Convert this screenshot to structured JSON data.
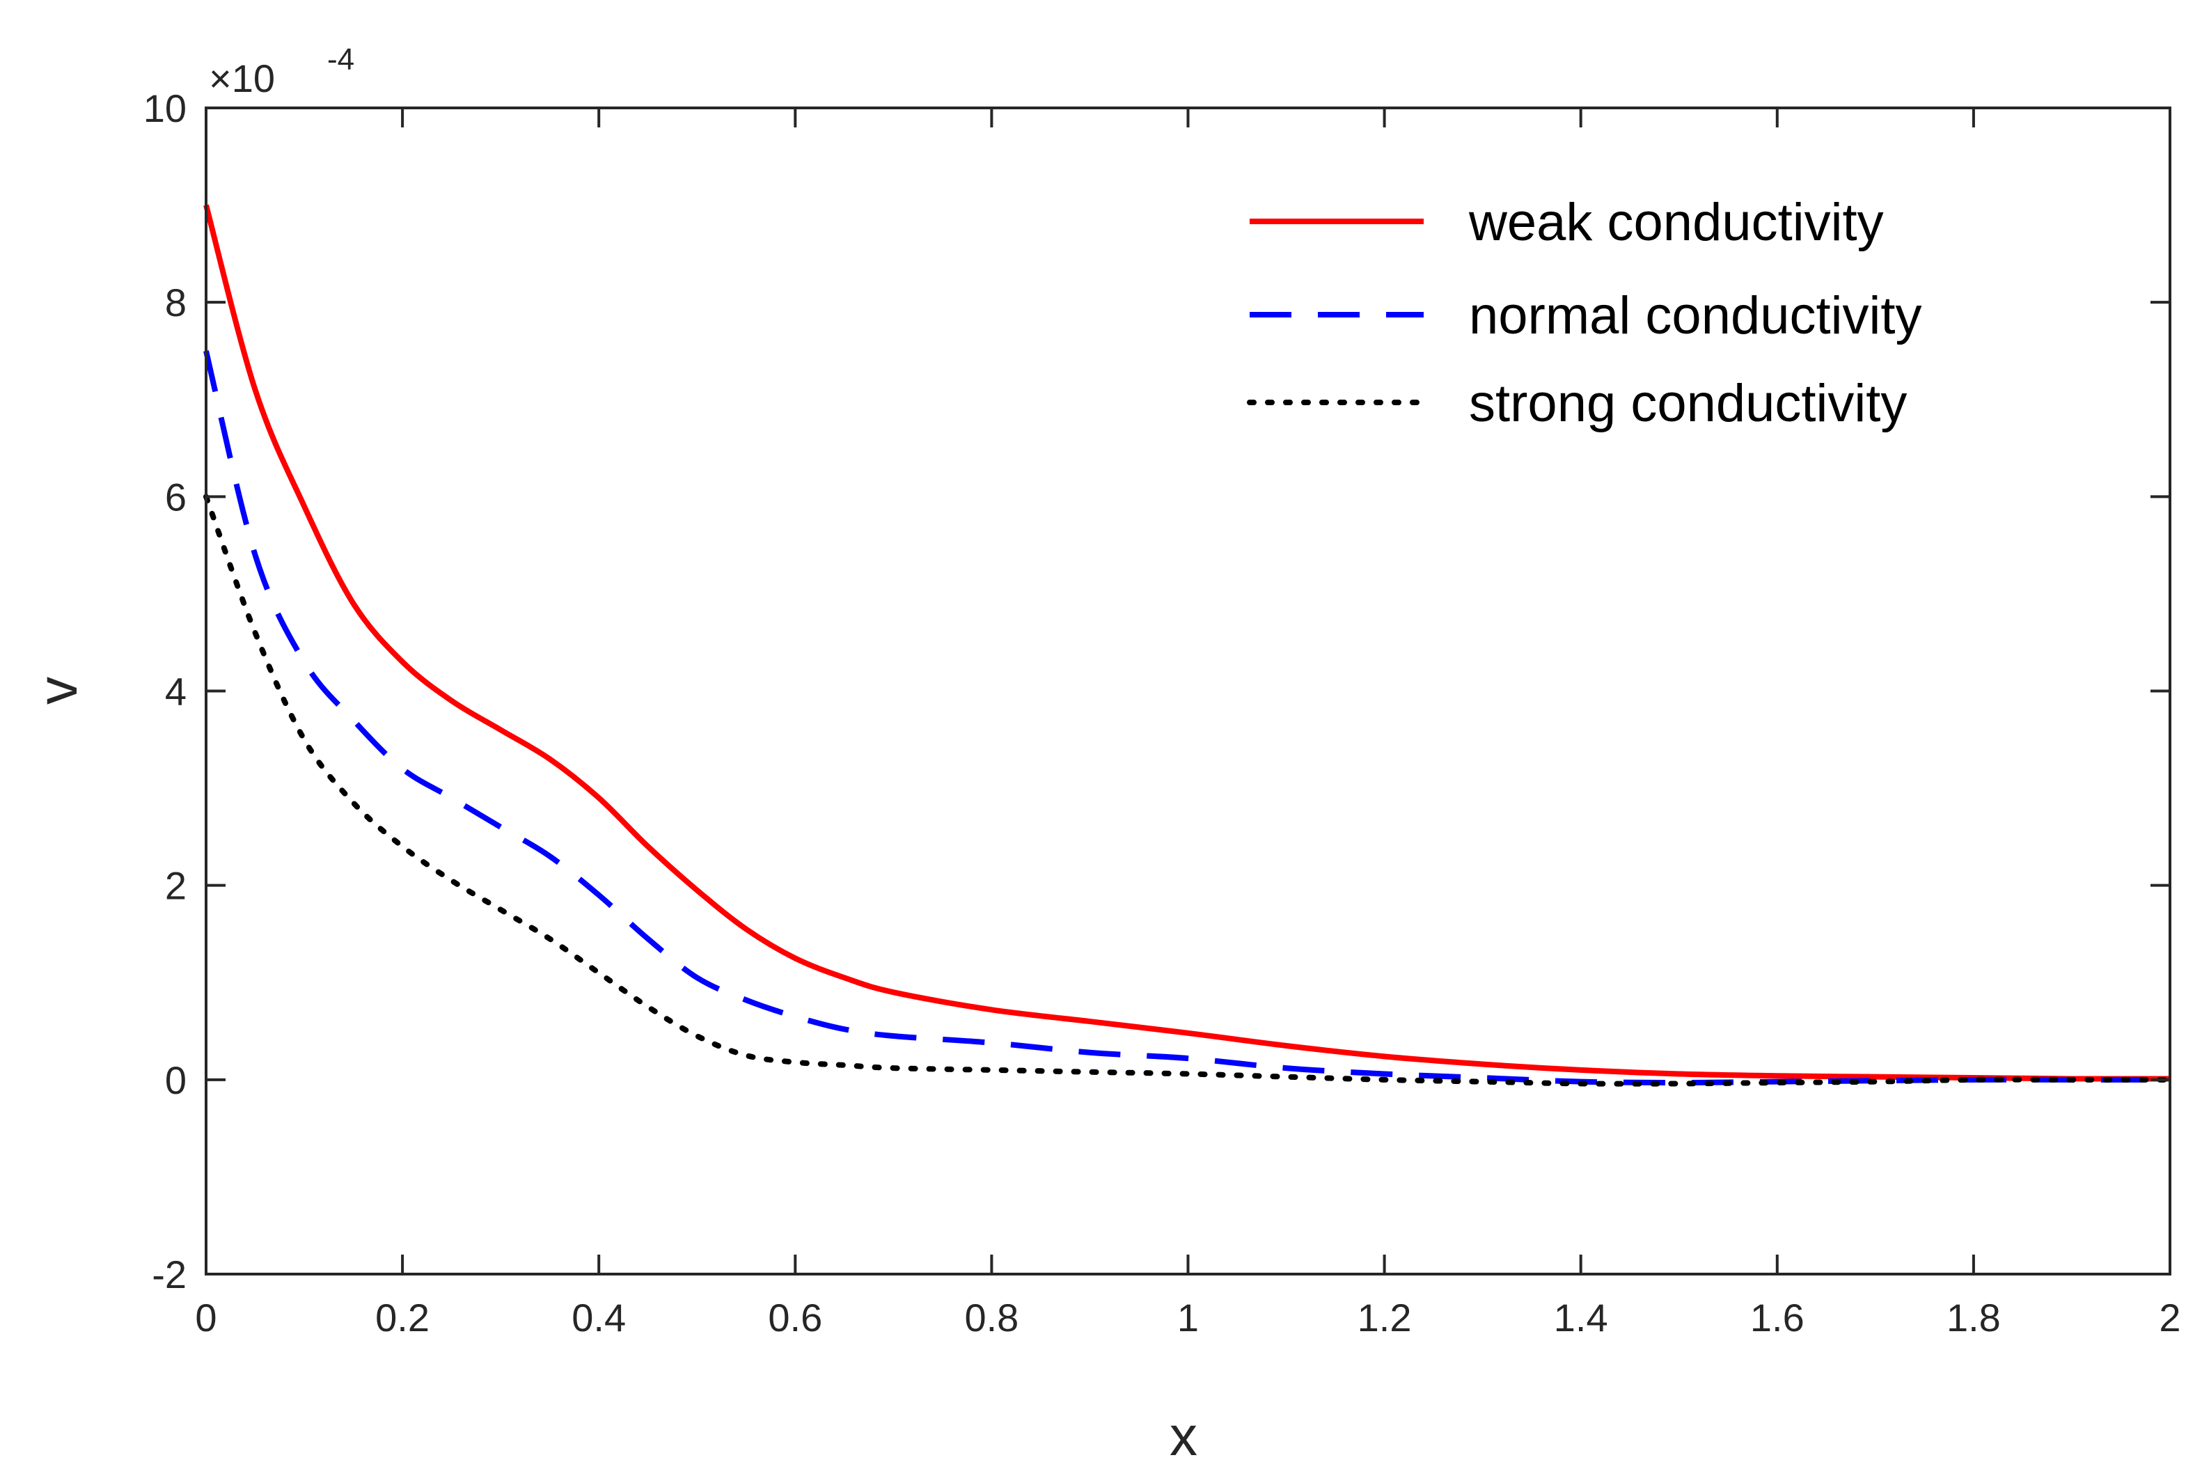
{
  "chart_data": {
    "type": "line",
    "title": "",
    "xlabel": "x",
    "ylabel": "v",
    "xlim": [
      0,
      2
    ],
    "ylim": [
      -2,
      10
    ],
    "y_multiplier": {
      "base": "×10",
      "exponent": "-4"
    },
    "xticks": [
      0,
      0.2,
      0.4,
      0.6,
      0.8,
      1,
      1.2,
      1.4,
      1.6,
      1.8,
      2
    ],
    "xtick_labels": [
      "0",
      "0.2",
      "0.4",
      "0.6",
      "0.8",
      "1",
      "1.2",
      "1.4",
      "1.6",
      "1.8",
      "2"
    ],
    "yticks": [
      -2,
      0,
      2,
      4,
      6,
      8,
      10
    ],
    "ytick_labels": [
      "-2",
      "0",
      "2",
      "4",
      "6",
      "8",
      "10"
    ],
    "grid": false,
    "legend_position": "top-right",
    "series": [
      {
        "name": "weak conductivity",
        "color": "#ff0000",
        "style": "solid",
        "x": [
          0,
          0.05,
          0.1,
          0.15,
          0.2,
          0.25,
          0.3,
          0.35,
          0.4,
          0.45,
          0.5,
          0.55,
          0.6,
          0.65,
          0.7,
          0.8,
          0.9,
          1.0,
          1.1,
          1.2,
          1.3,
          1.4,
          1.5,
          1.6,
          1.7,
          1.8,
          1.9,
          2.0
        ],
        "values": [
          9.0,
          7.1,
          5.9,
          4.9,
          4.3,
          3.9,
          3.6,
          3.3,
          2.9,
          2.4,
          1.95,
          1.55,
          1.25,
          1.05,
          0.9,
          0.72,
          0.6,
          0.48,
          0.35,
          0.24,
          0.16,
          0.1,
          0.06,
          0.04,
          0.03,
          0.02,
          0.01,
          0.01
        ]
      },
      {
        "name": "normal conductivity",
        "color": "#0000ff",
        "style": "dashed",
        "x": [
          0,
          0.05,
          0.1,
          0.15,
          0.2,
          0.25,
          0.3,
          0.35,
          0.4,
          0.45,
          0.5,
          0.55,
          0.6,
          0.65,
          0.7,
          0.8,
          0.9,
          1.0,
          1.1,
          1.2,
          1.3,
          1.4,
          1.5,
          1.6,
          1.7,
          1.8,
          1.9,
          2.0
        ],
        "values": [
          7.5,
          5.4,
          4.3,
          3.7,
          3.2,
          2.9,
          2.6,
          2.3,
          1.9,
          1.45,
          1.05,
          0.82,
          0.65,
          0.52,
          0.45,
          0.38,
          0.28,
          0.22,
          0.12,
          0.06,
          0.02,
          -0.02,
          -0.03,
          -0.02,
          -0.01,
          0.0,
          0.0,
          0.0
        ]
      },
      {
        "name": "strong conductivity",
        "color": "#000000",
        "style": "dotted",
        "x": [
          0,
          0.05,
          0.1,
          0.15,
          0.2,
          0.25,
          0.3,
          0.35,
          0.4,
          0.45,
          0.5,
          0.55,
          0.6,
          0.65,
          0.7,
          0.8,
          0.9,
          1.0,
          1.1,
          1.2,
          1.3,
          1.4,
          1.5,
          1.6,
          1.7,
          1.8,
          1.9,
          2.0
        ],
        "values": [
          6.0,
          4.6,
          3.5,
          2.85,
          2.4,
          2.05,
          1.75,
          1.45,
          1.1,
          0.75,
          0.45,
          0.25,
          0.18,
          0.15,
          0.12,
          0.1,
          0.08,
          0.06,
          0.03,
          0.0,
          -0.02,
          -0.04,
          -0.04,
          -0.03,
          -0.02,
          0.0,
          0.0,
          0.0
        ]
      }
    ]
  }
}
